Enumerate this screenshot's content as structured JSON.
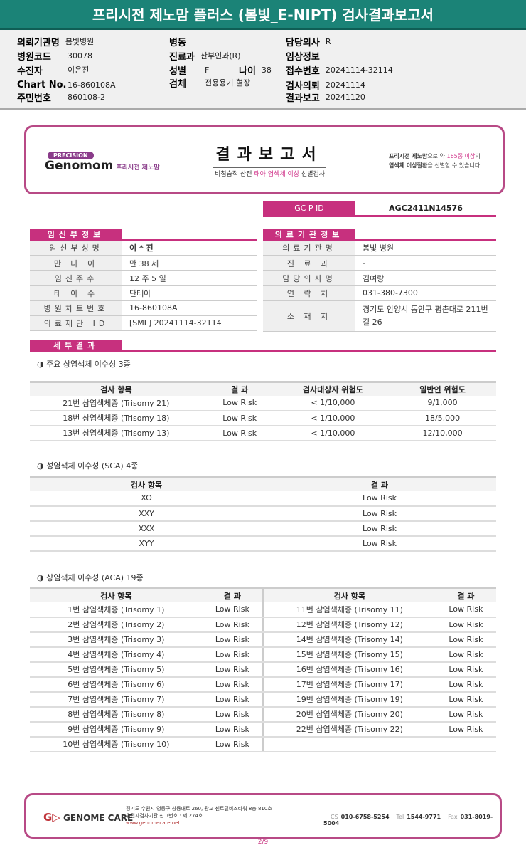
{
  "title": "프리시전 제노맘 플러스 (봄빛_E-NIPT) 검사결과보고서",
  "info": {
    "hospital_label": "의뢰기관명",
    "hospital": "봄빛병원",
    "code_label": "병원코드",
    "code": "30078",
    "patient_label": "수진자",
    "patient": "이은진",
    "chart_label": "Chart No.",
    "chart": "16-860108A",
    "rrn_label": "주민번호",
    "rrn": "860108-2",
    "ward_label": "병동",
    "ward": "",
    "dept_label": "진료과",
    "dept": "산부인과(R)",
    "sex_label": "성별",
    "sex": "F",
    "age_label": "나이",
    "age": "38",
    "specimen_label": "검체",
    "specimen": "전용용기 혈장",
    "doctor_label": "담당의사",
    "doctor": "R",
    "clinical_label": "임상정보",
    "clinical": "",
    "receipt_label": "접수번호",
    "receipt": "20241114-32114",
    "request_label": "검사의뢰",
    "request": "20241114",
    "report_label": "결과보고",
    "report": "20241120"
  },
  "report": {
    "logo_badge": "PRECISION",
    "logo_name": "Genomom",
    "logo_sub": "프리시전 제노맘",
    "title": "결과보고서",
    "subtitle_a": "비침습적 산전 ",
    "subtitle_b": "태아 염색체 이상",
    "subtitle_c": " 선별검사",
    "note_1a": "프리시전 제노맘",
    "note_1b": "으로 약 ",
    "note_1c": "165종 이상",
    "note_1d": "의",
    "note_2a": "염색체 이상질환",
    "note_2b": "을 선별할 수 있습니다",
    "gcpid_label": "GC P ID",
    "gcpid": "AGC2411N14576"
  },
  "mother": {
    "section": "임신부정보",
    "rows": [
      [
        "임신부성명",
        "이 * 진"
      ],
      [
        "만 나 이",
        "만 38 세"
      ],
      [
        "임신주수",
        "12 주 5 일"
      ],
      [
        "태 아 수",
        "단태아"
      ],
      [
        "병원차트번호",
        "16-860108A"
      ],
      [
        "의료재단 ID",
        "[SML] 20241114-32114"
      ]
    ]
  },
  "institution": {
    "section": "의료기관정보",
    "rows": [
      [
        "의료기관명",
        "봄빛 병원"
      ],
      [
        "진 료 과",
        "-"
      ],
      [
        "담당의사명",
        "김여랑"
      ],
      [
        "연 락 처",
        "031-380-7300"
      ],
      [
        "소 재 지",
        "경기도 안양시 동안구 평촌대로 211번길 26"
      ]
    ]
  },
  "detail": {
    "section": "세부결과"
  },
  "major": {
    "title": "◑ 주요 상염색체 이수성 3종",
    "headers": [
      "검사 항목",
      "결 과",
      "검사대상자 위험도",
      "일반인 위험도"
    ],
    "rows": [
      [
        "21번 삼염색체증 (Trisomy 21)",
        "Low Risk",
        "< 1/10,000",
        "9/1,000"
      ],
      [
        "18번 삼염색체증 (Trisomy 18)",
        "Low Risk",
        "< 1/10,000",
        "18/5,000"
      ],
      [
        "13번 삼염색체증 (Trisomy 13)",
        "Low Risk",
        "< 1/10,000",
        "12/10,000"
      ]
    ]
  },
  "sca": {
    "title": "◑ 성염색체 이수성 (SCA) 4종",
    "headers": [
      "검사 항목",
      "결 과"
    ],
    "rows": [
      [
        "XO",
        "Low Risk"
      ],
      [
        "XXY",
        "Low Risk"
      ],
      [
        "XXX",
        "Low Risk"
      ],
      [
        "XYY",
        "Low Risk"
      ]
    ]
  },
  "aca": {
    "title": "◑ 상염색체 이수성 (ACA) 19종",
    "headers": [
      "검사 항목",
      "결 과",
      "검사 항목",
      "결 과"
    ],
    "rows": [
      [
        "1번 삼염색체증 (Trisomy 1)",
        "Low Risk",
        "11번 삼염색체증 (Trisomy 11)",
        "Low Risk"
      ],
      [
        "2번 삼염색체증 (Trisomy 2)",
        "Low Risk",
        "12번 삼염색체증 (Trisomy 12)",
        "Low Risk"
      ],
      [
        "3번 삼염색체증 (Trisomy 3)",
        "Low Risk",
        "14번 삼염색체증 (Trisomy 14)",
        "Low Risk"
      ],
      [
        "4번 삼염색체증 (Trisomy 4)",
        "Low Risk",
        "15번 삼염색체증 (Trisomy 15)",
        "Low Risk"
      ],
      [
        "5번 삼염색체증 (Trisomy 5)",
        "Low Risk",
        "16번 삼염색체증 (Trisomy 16)",
        "Low Risk"
      ],
      [
        "6번 삼염색체증 (Trisomy 6)",
        "Low Risk",
        "17번 삼염색체증 (Trisomy 17)",
        "Low Risk"
      ],
      [
        "7번 삼염색체증 (Trisomy 7)",
        "Low Risk",
        "19번 삼염색체증 (Trisomy 19)",
        "Low Risk"
      ],
      [
        "8번 삼염색체증 (Trisomy 8)",
        "Low Risk",
        "20번 삼염색체증 (Trisomy 20)",
        "Low Risk"
      ],
      [
        "9번 삼염색체증 (Trisomy 9)",
        "Low Risk",
        "22번 삼염색체증 (Trisomy 22)",
        "Low Risk"
      ],
      [
        "10번 삼염색체증 (Trisomy 10)",
        "Low Risk",
        "",
        ""
      ]
    ]
  },
  "footer": {
    "brand": "GENOME CARE",
    "address": "경기도 수원시 영통구 창룡대로 260, 광교 센트럴비즈타워 8층 810호",
    "license": "유전자검사기관 신고번호 : 제 274호",
    "url": "www.genomecare.net",
    "cs_label": "CS",
    "cs": "010-6758-5254",
    "tel_label": "Tel",
    "tel": "1544-9771",
    "fax_label": "Fax",
    "fax": "031-8019-5004"
  },
  "page": "2/9",
  "colors": {
    "accent": "#c7307e",
    "titlebar": "#1b8377",
    "border": "#b84a86"
  }
}
